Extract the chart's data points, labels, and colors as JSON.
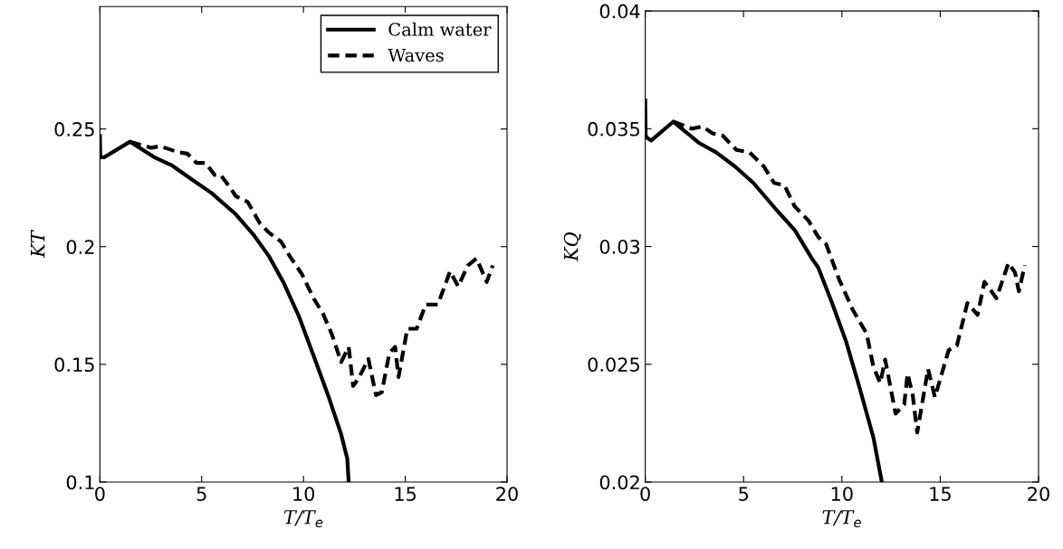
{
  "chart_data": [
    {
      "type": "line",
      "xlabel": "T/T$_{e}$",
      "ylabel": "KT",
      "xlim": [
        0,
        20
      ],
      "xticks": [
        0,
        5,
        10,
        15,
        20
      ],
      "ylim": [
        0.1,
        0.302
      ],
      "yticks": [
        0.1,
        0.15,
        0.2,
        0.25
      ],
      "grid": false,
      "legend": "top right",
      "marker": "none",
      "series": [
        {
          "name": "Calm water",
          "color": "#000000",
          "line_style": "solid",
          "x": [
            0,
            0.02,
            0.22,
            1.48,
            2.67,
            3.56,
            4.44,
            5.48,
            6.67,
            7.56,
            8.3,
            9.04,
            9.78,
            10.5,
            11.26,
            11.85,
            12.15,
            12.22
          ],
          "values": [
            0.247,
            0.238,
            0.238,
            0.2446,
            0.238,
            0.2344,
            0.229,
            0.2228,
            0.2138,
            0.2049,
            0.196,
            0.1844,
            0.1703,
            0.1536,
            0.1356,
            0.1203,
            0.11,
            0.1
          ]
        },
        {
          "name": "Waves",
          "color": "#000000",
          "line_style": "dashed",
          "x": [
            1.48,
            2.52,
            2.96,
            3.85,
            4.3,
            4.74,
            5.19,
            5.63,
            5.93,
            6.37,
            6.67,
            7.26,
            7.85,
            8.3,
            8.89,
            9.33,
            9.93,
            10.5,
            10.96,
            11.4,
            11.85,
            12.22,
            12.44,
            12.74,
            13.19,
            13.56,
            13.85,
            14.22,
            14.5,
            14.67,
            15.1,
            15.56,
            16.0,
            16.6,
            17.2,
            17.6,
            18.07,
            18.5,
            19.0,
            19.3
          ],
          "values": [
            0.2446,
            0.242,
            0.2427,
            0.2401,
            0.2395,
            0.2356,
            0.2356,
            0.2305,
            0.2305,
            0.2254,
            0.2215,
            0.219,
            0.21,
            0.206,
            0.2022,
            0.1959,
            0.1882,
            0.178,
            0.1715,
            0.1626,
            0.151,
            0.1574,
            0.1408,
            0.1446,
            0.1523,
            0.1369,
            0.1382,
            0.1549,
            0.1574,
            0.1446,
            0.1651,
            0.1651,
            0.1754,
            0.1754,
            0.1895,
            0.1831,
            0.192,
            0.195,
            0.185,
            0.192
          ]
        }
      ]
    },
    {
      "type": "line",
      "xlabel": "T/T$_{e}$",
      "ylabel": "KQ",
      "xlim": [
        0,
        20
      ],
      "xticks": [
        0,
        5,
        10,
        15,
        20
      ],
      "ylim": [
        0.02,
        0.04
      ],
      "yticks": [
        0.02,
        0.025,
        0.03,
        0.035,
        0.04
      ],
      "grid": false,
      "marker": "none",
      "series": [
        {
          "color": "#000000",
          "line_style": "solid",
          "x": [
            0,
            0.02,
            0.12,
            0.3,
            1.43,
            2.73,
            3.6,
            4.56,
            5.5,
            6.73,
            7.6,
            8.47,
            8.8,
            9.5,
            10.2,
            10.9,
            11.6,
            12.03
          ],
          "values": [
            0.0362,
            0.0347,
            0.0346,
            0.0345,
            0.0353,
            0.0344,
            0.034,
            0.0334,
            0.0327,
            0.0315,
            0.0307,
            0.0295,
            0.0291,
            0.0276,
            0.026,
            0.024,
            0.0219,
            0.02
          ]
        },
        {
          "color": "#000000",
          "line_style": "dashed",
          "x": [
            1.43,
            2.38,
            2.9,
            3.43,
            3.95,
            4.64,
            5.3,
            6.03,
            6.55,
            7.08,
            7.6,
            8.3,
            8.8,
            9.2,
            9.86,
            10.56,
            11.26,
            11.6,
            11.95,
            12.2,
            12.73,
            13.17,
            13.34,
            13.6,
            13.83,
            14.38,
            14.73,
            15.43,
            15.85,
            16.38,
            16.9,
            17.25,
            17.86,
            18.47,
            18.8,
            19.0,
            19.3
          ],
          "values": [
            0.0353,
            0.035,
            0.0351,
            0.0348,
            0.0347,
            0.0341,
            0.034,
            0.0334,
            0.0327,
            0.0326,
            0.0317,
            0.0311,
            0.0304,
            0.0301,
            0.0286,
            0.0273,
            0.0263,
            0.0249,
            0.0242,
            0.0252,
            0.0229,
            0.0233,
            0.0246,
            0.0237,
            0.0221,
            0.0248,
            0.0236,
            0.0256,
            0.0258,
            0.0276,
            0.0271,
            0.0285,
            0.0278,
            0.0293,
            0.0289,
            0.0281,
            0.0292
          ]
        }
      ]
    }
  ]
}
